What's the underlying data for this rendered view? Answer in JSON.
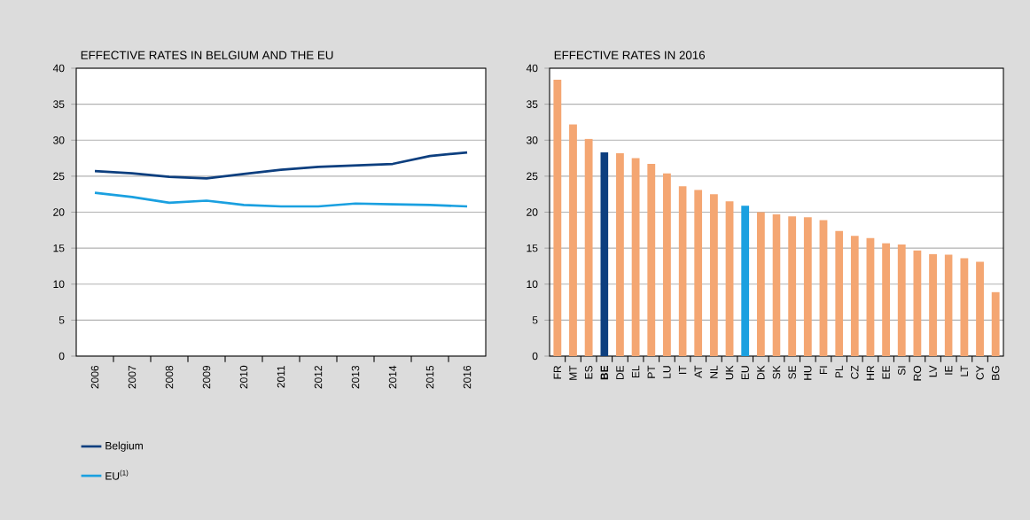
{
  "chart_data": [
    {
      "type": "line",
      "title": "EFFECTIVE RATES IN BELGIUM AND THE EU",
      "categories": [
        "2006",
        "2007",
        "2008",
        "2009",
        "2010",
        "2011",
        "2012",
        "2013",
        "2014",
        "2015",
        "2016"
      ],
      "series": [
        {
          "name": "Belgium",
          "color": "#0d3f7f",
          "values": [
            25.7,
            25.4,
            24.9,
            24.7,
            25.3,
            25.9,
            26.3,
            26.5,
            26.7,
            27.8,
            28.3
          ]
        },
        {
          "name": "EU$^{(1)}$",
          "color": "#1aa0e0",
          "values": [
            22.7,
            22.1,
            21.3,
            21.6,
            21.0,
            20.8,
            20.8,
            21.2,
            21.1,
            21.0,
            20.8
          ]
        }
      ],
      "ylim": [
        0,
        40
      ],
      "yticks": [
        0,
        5,
        10,
        15,
        20,
        25,
        30,
        35,
        40
      ],
      "grid": "y",
      "legend": "bottom"
    },
    {
      "type": "bar",
      "title": "EFFECTIVE RATES IN 2016",
      "categories": [
        "FR",
        "MT",
        "ES",
        "**BE**",
        "DE",
        "EL",
        "PT",
        "LU",
        "IT",
        "AT",
        "NL",
        "UK",
        "EU",
        "DK",
        "SK",
        "SE",
        "HU",
        "FI",
        "PL",
        "CZ",
        "HR",
        "EE",
        "SI",
        "RO",
        "LV",
        "IE",
        "LT",
        "CY",
        "BG"
      ],
      "values": [
        38.4,
        32.2,
        30.2,
        28.3,
        28.2,
        27.5,
        26.7,
        25.4,
        23.6,
        23.1,
        22.5,
        21.5,
        20.9,
        20.0,
        19.7,
        19.4,
        19.3,
        18.9,
        17.4,
        16.7,
        16.4,
        15.7,
        15.5,
        14.7,
        14.2,
        14.1,
        13.6,
        13.1,
        8.9
      ],
      "colors": [
        "#f4a672",
        "#f4a672",
        "#f4a672",
        "#0d3f7f",
        "#f4a672",
        "#f4a672",
        "#f4a672",
        "#f4a672",
        "#f4a672",
        "#f4a672",
        "#f4a672",
        "#f4a672",
        "#1aa0e0",
        "#f4a672",
        "#f4a672",
        "#f4a672",
        "#f4a672",
        "#f4a672",
        "#f4a672",
        "#f4a672",
        "#f4a672",
        "#f4a672",
        "#f4a672",
        "#f4a672",
        "#f4a672",
        "#f4a672",
        "#f4a672",
        "#f4a672",
        "#f4a672"
      ],
      "ylim": [
        0,
        40
      ],
      "yticks": [
        0,
        5,
        10,
        15,
        20,
        25,
        30,
        35,
        40
      ],
      "grid": "y"
    }
  ]
}
